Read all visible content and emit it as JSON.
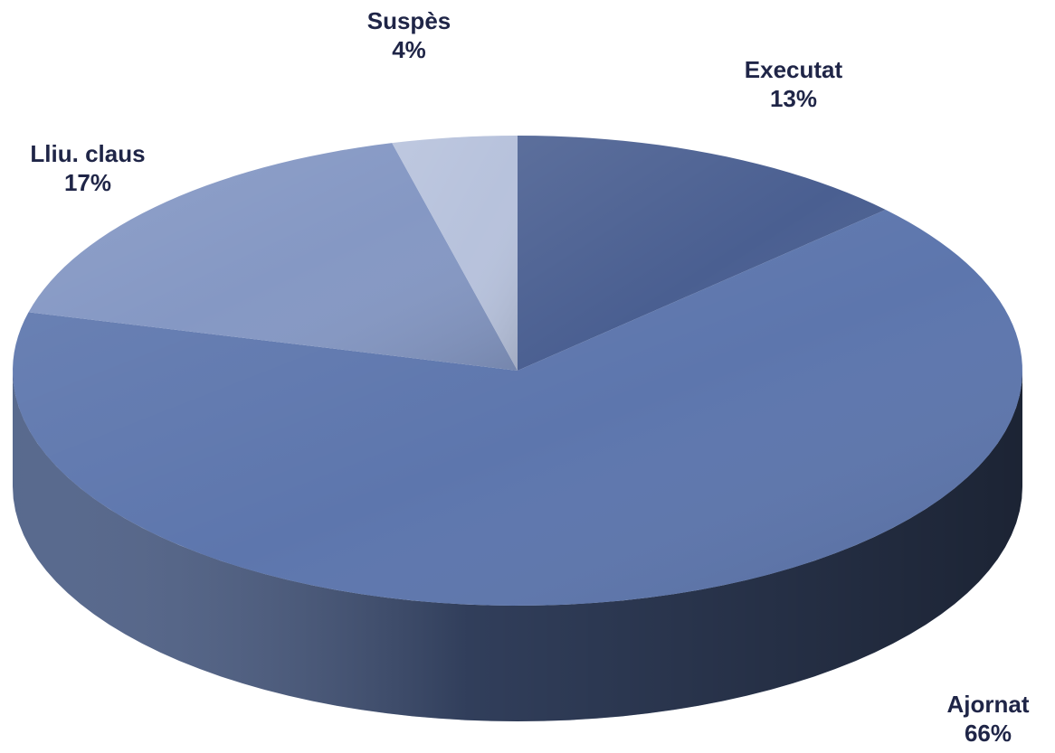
{
  "chart_data": {
    "type": "pie",
    "style": "3d",
    "title": "",
    "slices": [
      {
        "label": "Executat",
        "value": 13,
        "percent_label": "13%",
        "color": "#4a5f91"
      },
      {
        "label": "Ajornat",
        "value": 66,
        "percent_label": "66%",
        "color": "#5d76ad"
      },
      {
        "label": "Lliu. claus",
        "value": 17,
        "percent_label": "17%",
        "color": "#8598c4"
      },
      {
        "label": "Suspès",
        "value": 4,
        "percent_label": "4%",
        "color": "#b7c2dc"
      }
    ],
    "data_labels": "category-and-percent",
    "legend": "none",
    "label_color": "#1f2547",
    "background": "#ffffff"
  }
}
